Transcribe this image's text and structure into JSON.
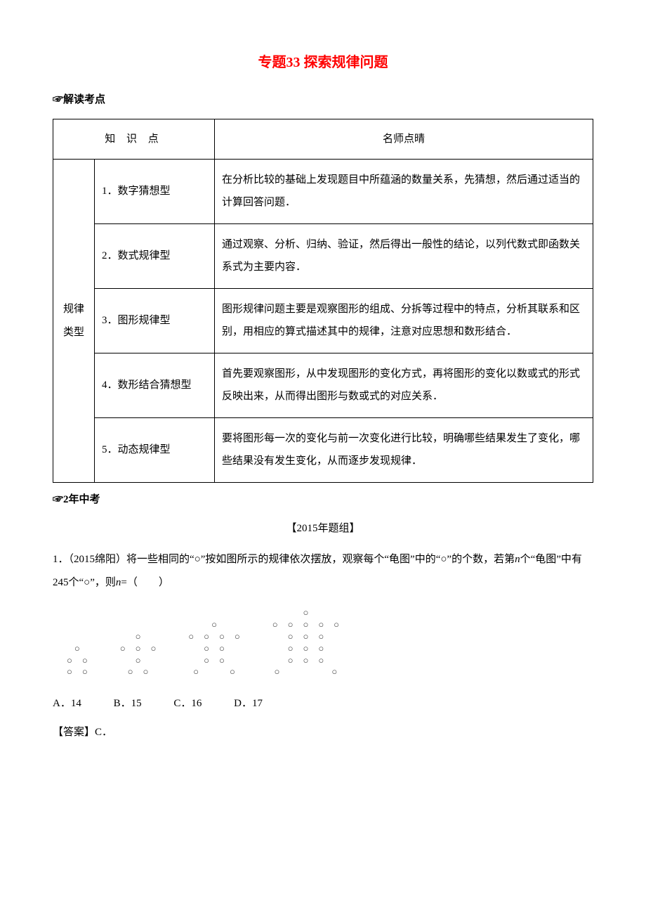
{
  "title": "专题33 探索规律问题",
  "section1_label": "☞解读考点",
  "table": {
    "header_knowledge": "知 识 点",
    "header_comment": "名师点晴",
    "category": "规律类型",
    "rows": [
      {
        "subject": "1．数字猜想型",
        "desc": "在分析比较的基础上发现题目中所蕴涵的数量关系，先猜想，然后通过适当的计算回答问题．"
      },
      {
        "subject": "2．数式规律型",
        "desc": "通过观察、分析、归纳、验证，然后得出一般性的结论，以列代数式即函数关系式为主要内容．"
      },
      {
        "subject": "3．图形规律型",
        "desc": "图形规律问题主要是观察图形的组成、分拆等过程中的特点，分析其联系和区别，用相应的算式描述其中的规律，注意对应思想和数形结合．"
      },
      {
        "subject": "4．数形结合猜想型",
        "desc": "首先要观察图形，从中发现图形的变化方式，再将图形的变化以数或式的形式反映出来，从而得出图形与数或式的对应关系．"
      },
      {
        "subject": "5．动态规律型",
        "desc": "要将图形每一次的变化与前一次变化进行比较，明确哪些结果发生了变化，哪些结果没有发生变化，从而逐步发现规律．"
      }
    ]
  },
  "section2_label": "☞2年中考",
  "group_heading": "【2015年题组】",
  "question": {
    "prefix": "1．（2015绵阳）将一些相同的“○”按如图所示的规律依次摆放，观察每个“龟图”中的“○”的个数，若第",
    "var": "n",
    "mid": "个“龟图”中有245个“○”，则",
    "var2": "n",
    "suffix": "=（　　）"
  },
  "options": {
    "a": "A．14",
    "b": "B．15",
    "c": "C．16",
    "d": "D．17"
  },
  "answer": "【答案】C．",
  "dot_glyph": "○",
  "colors": {
    "title": "#ff0000",
    "border": "#000000",
    "text": "#000000",
    "background": "#ffffff"
  }
}
